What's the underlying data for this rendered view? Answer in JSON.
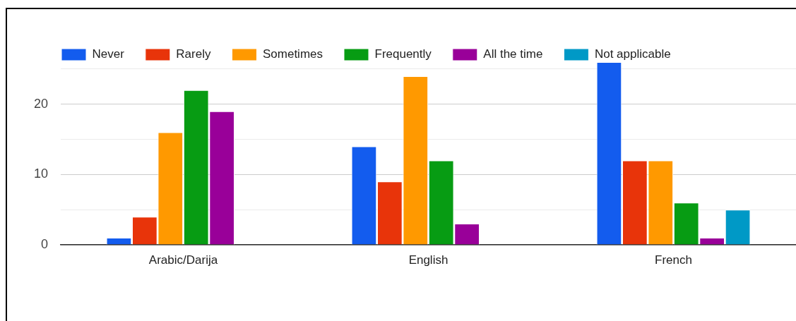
{
  "chart_data": {
    "type": "bar",
    "categories": [
      "Arabic/Darija",
      "English",
      "French"
    ],
    "series": [
      {
        "name": "Never",
        "color": "#135cee",
        "values": [
          1,
          14,
          26
        ]
      },
      {
        "name": "Rarely",
        "color": "#e8340a",
        "values": [
          4,
          9,
          12
        ]
      },
      {
        "name": "Sometimes",
        "color": "#ff9900",
        "values": [
          16,
          24,
          12
        ]
      },
      {
        "name": "Frequently",
        "color": "#079c13",
        "values": [
          22,
          12,
          6
        ]
      },
      {
        "name": "All the time",
        "color": "#990099",
        "values": [
          19,
          3,
          1
        ]
      },
      {
        "name": "Not applicable",
        "color": "#0099c6",
        "values": [
          null,
          null,
          5
        ]
      }
    ],
    "ylim": [
      0,
      26
    ],
    "yticks": [
      0,
      {
        "value": 5,
        "label": null
      },
      10,
      {
        "value": 15,
        "label": null
      },
      20,
      {
        "value": 25,
        "label": null
      }
    ],
    "grid": "y",
    "legend": "top left"
  }
}
